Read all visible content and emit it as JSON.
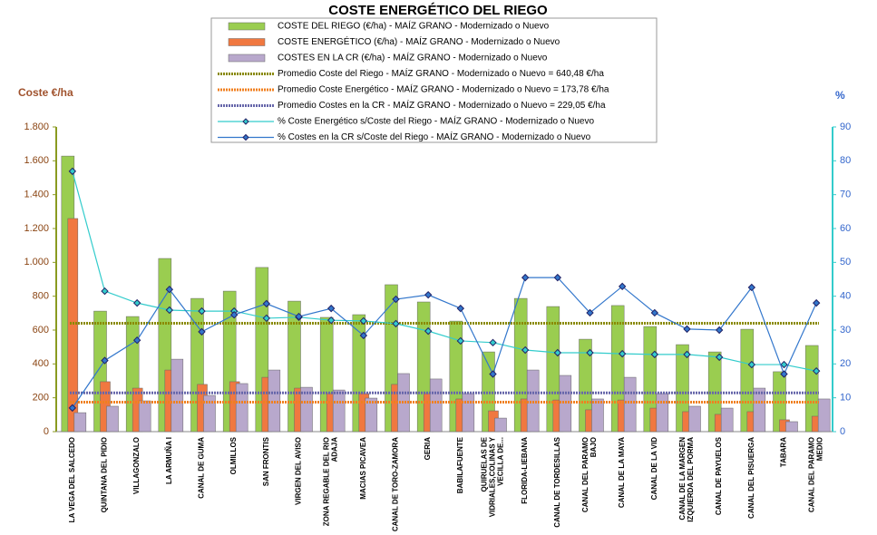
{
  "chart_data": {
    "type": "bar",
    "title": "COSTE ENERGÉTICO DEL RIEGO",
    "y_label": "Coste €/ha",
    "y2_label": "%",
    "categories": [
      "LA VEGA DEL SALCEDO",
      "QUINTANA DEL PIDIO",
      "VILLAGONZALO",
      "LA ARMUÑA I",
      "CANAL DE GUMA",
      "OLMILLOS",
      "SAN FRONTIS",
      "VIRGEN DEL AVISO",
      "ZONA REGABLE DEL RIO ADAJA",
      "MACIAS PICAVEA",
      "CANAL DE TORO-ZAMORA",
      "GERIA",
      "BABILAFUENTE",
      "QUIRUELAS DE VIDRIALES,COLINAS Y VECILLA DE...",
      "FLORIDA-LIEBANA",
      "CANAL DE TORDESILLAS",
      "CANAL DEL PARAMO BAJO",
      "CANAL DE LA MAYA",
      "CANAL DE LA VID",
      "CANAL DE LA MARGEN IZQUIERDA DEL PORMA",
      "CANAL DE PAYUELOS",
      "CANAL DEL PISUERGA",
      "TABARA",
      "CANAL DEL PARAMO MEDIO"
    ],
    "series": [
      {
        "name": "COSTE DEL RIEGO (€/ha) - MAÍZ GRANO - Modernizado o Nuevo",
        "type": "bar",
        "color": "#9acd50",
        "values": [
          1628,
          712,
          680,
          1023,
          787,
          830,
          970,
          771,
          675,
          691,
          868,
          766,
          653,
          471,
          787,
          739,
          546,
          745,
          621,
          514,
          471,
          605,
          354,
          509
        ]
      },
      {
        "name": "COSTE ENERGÉTICO (€/ha) - MAÍZ GRANO - Modernizado o Nuevo",
        "type": "bar",
        "color": "#f07840",
        "values": [
          1259,
          295,
          257,
          364,
          279,
          295,
          321,
          257,
          225,
          225,
          279,
          225,
          193,
          123,
          193,
          187,
          129,
          187,
          139,
          118,
          102,
          118,
          70,
          91
        ]
      },
      {
        "name": "COSTES EN LA CR (€/ha) - MAÍZ GRANO - Modernizado o Nuevo",
        "type": "bar",
        "color": "#b8a8cc",
        "values": [
          112,
          150,
          182,
          428,
          214,
          284,
          364,
          262,
          246,
          198,
          343,
          311,
          225,
          80,
          364,
          332,
          193,
          321,
          225,
          150,
          139,
          257,
          59,
          193
        ]
      },
      {
        "name": "% Coste Energético s/Coste del Riego - MAÍZ GRANO - Modernizado o Nuevo",
        "type": "line",
        "axis": "y2",
        "color": "#33cccc",
        "values": [
          76.9,
          41.5,
          38.0,
          35.9,
          35.6,
          35.6,
          33.5,
          33.8,
          32.9,
          32.7,
          31.9,
          29.7,
          26.8,
          26.3,
          24.1,
          23.3,
          23.3,
          23.0,
          22.8,
          22.8,
          22.0,
          19.8,
          19.8,
          17.9
        ]
      },
      {
        "name": "% Costes en la CR s/Coste del Riego - MAÍZ GRANO - Modernizado o Nuevo",
        "type": "line",
        "axis": "y2",
        "color": "#3377cc",
        "values": [
          7,
          21,
          27,
          42,
          29.5,
          34.5,
          37.8,
          34,
          36.4,
          28.4,
          39.1,
          40.4,
          36.4,
          17,
          45.5,
          45.5,
          35.1,
          42.9,
          35.1,
          30.3,
          30,
          42.6,
          17,
          38
        ]
      }
    ],
    "reference_lines": [
      {
        "name": "Promedio Coste del Riego - MAÍZ GRANO - Modernizado o Nuevo = 640,48 €/ha",
        "value": 640.48,
        "color": "#8a8a00"
      },
      {
        "name": "Promedio Coste Energético - MAÍZ GRANO - Modernizado o Nuevo = 173,78 €/ha",
        "value": 173.78,
        "color": "#f08020"
      },
      {
        "name": "Promedio Costes en la CR - MAÍZ GRANO - Modernizado o Nuevo = 229,05 €/ha",
        "value": 229.05,
        "color": "#6666aa"
      }
    ],
    "ylim": [
      0,
      1800
    ],
    "yticks": [
      0,
      200,
      400,
      600,
      800,
      {
        "value": 1000,
        "label": "1.000"
      },
      {
        "value": 1200,
        "label": "1.200"
      },
      {
        "value": 1400,
        "label": "1.400"
      },
      {
        "value": 1600,
        "label": "1.600"
      },
      {
        "value": 1800,
        "label": "1.800"
      }
    ],
    "y2lim": [
      0,
      90
    ],
    "y2ticks": [
      0,
      10,
      20,
      30,
      40,
      50,
      60,
      70,
      80,
      90
    ]
  }
}
